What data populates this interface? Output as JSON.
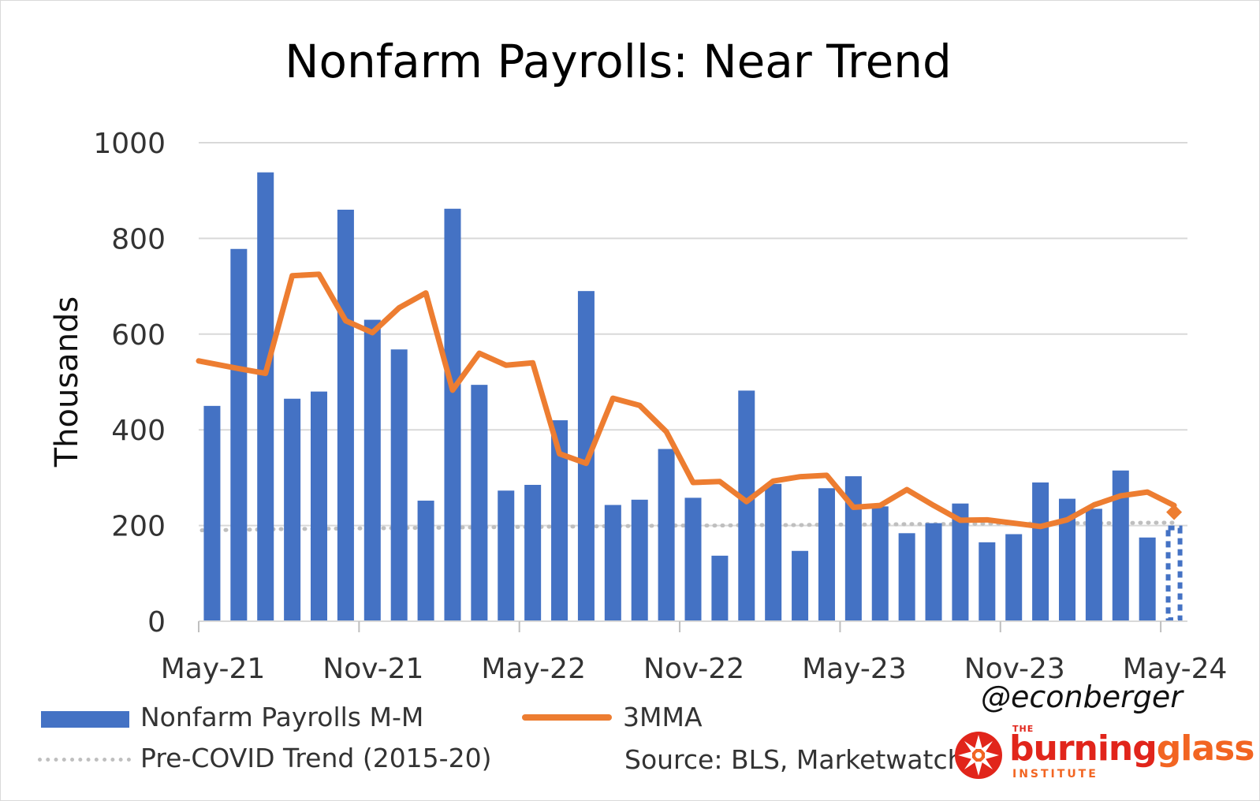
{
  "title": "Nonfarm Payrolls: Near Trend",
  "handle": "@econberger",
  "source": "Source: BLS, Marketwatch",
  "logo": {
    "the": "THE",
    "word_a": "burning",
    "word_b": "glass",
    "institute": "INSTITUTE"
  },
  "colors": {
    "bars": "#4472c4",
    "line": "#ed7d31",
    "trend": "#bfbfbf",
    "grid": "#d9d9d9"
  },
  "chart_data": {
    "type": "bar",
    "ylabel": "Thousands",
    "ylim": [
      0,
      1000
    ],
    "yticks": [
      0,
      200,
      400,
      600,
      800,
      1000
    ],
    "xtick_labels": [
      "May-21",
      "Nov-21",
      "May-22",
      "Nov-22",
      "May-23",
      "Nov-23",
      "May-24"
    ],
    "grid": true,
    "legend": "bottom",
    "categories": [
      "May-21",
      "Jun-21",
      "Jul-21",
      "Aug-21",
      "Sep-21",
      "Oct-21",
      "Nov-21",
      "Dec-21",
      "Jan-22",
      "Feb-22",
      "Mar-22",
      "Apr-22",
      "May-22",
      "Jun-22",
      "Jul-22",
      "Aug-22",
      "Sep-22",
      "Oct-22",
      "Nov-22",
      "Dec-22",
      "Jan-23",
      "Feb-23",
      "Mar-23",
      "Apr-23",
      "May-23",
      "Jun-23",
      "Jul-23",
      "Aug-23",
      "Sep-23",
      "Oct-23",
      "Nov-23",
      "Dec-23",
      "Jan-24",
      "Feb-24",
      "Mar-24",
      "Apr-24",
      "May-24"
    ],
    "series": [
      {
        "name": "Nonfarm Payrolls M-M",
        "type": "bar",
        "values": [
          450,
          778,
          938,
          465,
          480,
          860,
          630,
          568,
          252,
          862,
          494,
          273,
          285,
          420,
          690,
          243,
          254,
          360,
          258,
          137,
          482,
          287,
          147,
          278,
          303,
          240,
          184,
          205,
          246,
          165,
          182,
          290,
          256,
          235,
          315,
          175,
          null
        ]
      },
      {
        "name": "3MMA",
        "type": "line",
        "values": [
          544,
          528,
          518,
          722,
          725,
          628,
          603,
          655,
          686,
          483,
          560,
          535,
          540,
          350,
          330,
          466,
          451,
          396,
          290,
          292,
          250,
          293,
          302,
          305,
          238,
          242,
          275,
          242,
          211,
          212,
          205,
          198,
          212,
          243,
          262,
          270,
          242
        ]
      },
      {
        "name": "Pre-COVID Trend (2015-20)",
        "type": "line",
        "style": "dotted",
        "values": [
          190,
          191,
          192,
          193,
          193,
          194,
          194,
          195,
          195,
          196,
          196,
          197,
          197,
          198,
          198,
          199,
          199,
          200,
          200,
          200,
          201,
          201,
          201,
          202,
          202,
          202,
          203,
          203,
          203,
          204,
          204,
          204,
          205,
          205,
          205,
          206,
          206
        ]
      }
    ],
    "may24_forecast": {
      "bar": 195,
      "marker": 228
    }
  }
}
